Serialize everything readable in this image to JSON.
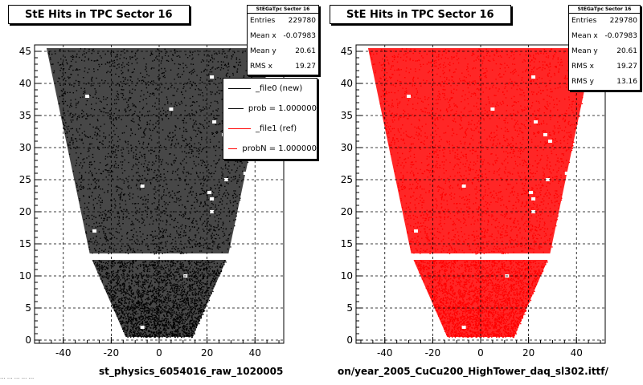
{
  "chart_data": [
    {
      "type": "scatter",
      "title": "StE Hits in TPC Sector 16",
      "xlabel": "st_physics_6054016_raw_1020005",
      "ylabel": "",
      "xlim": [
        -52,
        52
      ],
      "ylim": [
        -0.5,
        46
      ],
      "xticks": [
        -40,
        -20,
        0,
        20,
        40
      ],
      "yticks": [
        0,
        5,
        10,
        15,
        20,
        25,
        30,
        35,
        40,
        45
      ],
      "grid": true,
      "marker_color": "#000000",
      "stats": {
        "header": "StEGaTpc Sector 16",
        "rows": [
          {
            "label": "Entries",
            "value": "229780"
          },
          {
            "label": "Mean x",
            "value": "-0.07983"
          },
          {
            "label": "Mean y",
            "value": "20.61"
          },
          {
            "label": "RMS x",
            "value": "19.27"
          }
        ]
      },
      "legend": [
        {
          "label": "_file0 (new)",
          "color": "#000000"
        },
        {
          "label": "prob = 1.000000",
          "color": "#000000"
        },
        {
          "label": "_file1 (ref)",
          "color": "#ff0000"
        },
        {
          "label": "probN = 1.000000",
          "color": "#ff0000"
        }
      ],
      "outline": {
        "upper": {
          "y": [
            13.5,
            45.5
          ],
          "half_width": [
            29,
            47
          ]
        },
        "lower": {
          "y": [
            0.5,
            12.5
          ],
          "half_width": [
            14,
            28
          ]
        }
      }
    },
    {
      "type": "scatter",
      "title": "StE Hits in TPC Sector 16",
      "xlabel": "on/year_2005_CuCu200_HighTower_daq_sl302.ittf/",
      "ylabel": "",
      "xlim": [
        -52,
        52
      ],
      "ylim": [
        -0.5,
        46
      ],
      "xticks": [
        -40,
        -20,
        0,
        20,
        40
      ],
      "yticks": [
        0,
        5,
        10,
        15,
        20,
        25,
        30,
        35,
        40,
        45
      ],
      "grid": true,
      "marker_color": "#ff0000",
      "stats": {
        "header": "StEGaTpc Sector 16",
        "rows": [
          {
            "label": "Entries",
            "value": "229780"
          },
          {
            "label": "Mean x",
            "value": "-0.07983"
          },
          {
            "label": "Mean y",
            "value": "20.61"
          },
          {
            "label": "RMS x",
            "value": "19.27"
          },
          {
            "label": "RMS y",
            "value": "13.16"
          }
        ]
      },
      "outline": {
        "upper": {
          "y": [
            13.5,
            45.5
          ],
          "half_width": [
            29,
            47
          ]
        },
        "lower": {
          "y": [
            0.5,
            12.5
          ],
          "half_width": [
            14,
            28
          ]
        }
      }
    }
  ],
  "footer": "... ... ... ... ..."
}
